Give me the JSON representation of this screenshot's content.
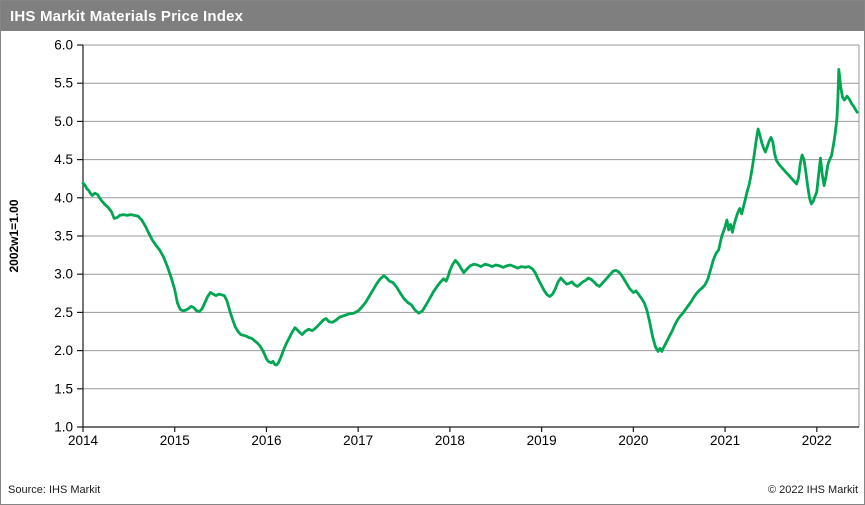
{
  "header": {
    "title": "IHS Markit Materials Price Index",
    "bg_color": "#7f7f7f",
    "text_color": "#ffffff"
  },
  "footer": {
    "source": "Source: IHS Markit",
    "copyright": "© 2022  IHS Markit"
  },
  "chart_data": {
    "type": "line",
    "title": "IHS Markit Materials Price Index",
    "xlabel": "",
    "ylabel": "2002w1=1.00",
    "xlim": [
      2014,
      2022.46
    ],
    "ylim": [
      1.0,
      6.0
    ],
    "grid": "horizontal",
    "legend": "none",
    "gridline_color": "#999999",
    "axis_color": "#1a1a1a",
    "tick_label_color": "#000000",
    "x_ticks": [
      2014,
      2015,
      2016,
      2017,
      2018,
      2019,
      2020,
      2021,
      2022
    ],
    "x_tick_labels": [
      "2014",
      "2015",
      "2016",
      "2017",
      "2018",
      "2019",
      "2020",
      "2021",
      "2022"
    ],
    "y_ticks": [
      1.0,
      1.5,
      2.0,
      2.5,
      3.0,
      3.5,
      4.0,
      4.5,
      5.0,
      5.5,
      6.0
    ],
    "y_tick_labels": [
      "1.0",
      "1.5",
      "2.0",
      "2.5",
      "3.0",
      "3.5",
      "4.0",
      "4.5",
      "5.0",
      "5.5",
      "6.0"
    ],
    "series": [
      {
        "name": "IHS Markit Materials Price Index",
        "color": "#00A651",
        "points": [
          [
            2014.0,
            4.19
          ],
          [
            2014.02,
            4.17
          ],
          [
            2014.04,
            4.12
          ],
          [
            2014.06,
            4.1
          ],
          [
            2014.08,
            4.06
          ],
          [
            2014.1,
            4.03
          ],
          [
            2014.13,
            4.06
          ],
          [
            2014.16,
            4.04
          ],
          [
            2014.18,
            4.0
          ],
          [
            2014.21,
            3.95
          ],
          [
            2014.24,
            3.91
          ],
          [
            2014.27,
            3.88
          ],
          [
            2014.31,
            3.82
          ],
          [
            2014.34,
            3.73
          ],
          [
            2014.37,
            3.74
          ],
          [
            2014.4,
            3.77
          ],
          [
            2014.44,
            3.78
          ],
          [
            2014.48,
            3.77
          ],
          [
            2014.52,
            3.78
          ],
          [
            2014.56,
            3.77
          ],
          [
            2014.6,
            3.76
          ],
          [
            2014.64,
            3.71
          ],
          [
            2014.68,
            3.63
          ],
          [
            2014.72,
            3.53
          ],
          [
            2014.76,
            3.44
          ],
          [
            2014.8,
            3.37
          ],
          [
            2014.84,
            3.31
          ],
          [
            2014.88,
            3.22
          ],
          [
            2014.92,
            3.1
          ],
          [
            2014.96,
            2.96
          ],
          [
            2015.0,
            2.8
          ],
          [
            2015.03,
            2.62
          ],
          [
            2015.06,
            2.54
          ],
          [
            2015.09,
            2.52
          ],
          [
            2015.12,
            2.53
          ],
          [
            2015.15,
            2.55
          ],
          [
            2015.18,
            2.58
          ],
          [
            2015.21,
            2.56
          ],
          [
            2015.24,
            2.52
          ],
          [
            2015.27,
            2.51
          ],
          [
            2015.3,
            2.55
          ],
          [
            2015.33,
            2.63
          ],
          [
            2015.36,
            2.71
          ],
          [
            2015.39,
            2.76
          ],
          [
            2015.42,
            2.74
          ],
          [
            2015.45,
            2.72
          ],
          [
            2015.48,
            2.74
          ],
          [
            2015.51,
            2.73
          ],
          [
            2015.54,
            2.72
          ],
          [
            2015.57,
            2.65
          ],
          [
            2015.6,
            2.52
          ],
          [
            2015.63,
            2.41
          ],
          [
            2015.66,
            2.31
          ],
          [
            2015.69,
            2.25
          ],
          [
            2015.72,
            2.21
          ],
          [
            2015.75,
            2.2
          ],
          [
            2015.78,
            2.19
          ],
          [
            2015.81,
            2.17
          ],
          [
            2015.84,
            2.16
          ],
          [
            2015.87,
            2.13
          ],
          [
            2015.9,
            2.1
          ],
          [
            2015.93,
            2.06
          ],
          [
            2015.96,
            2.0
          ],
          [
            2015.98,
            1.95
          ],
          [
            2016.0,
            1.89
          ],
          [
            2016.02,
            1.86
          ],
          [
            2016.05,
            1.84
          ],
          [
            2016.07,
            1.86
          ],
          [
            2016.09,
            1.82
          ],
          [
            2016.11,
            1.81
          ],
          [
            2016.13,
            1.84
          ],
          [
            2016.16,
            1.92
          ],
          [
            2016.19,
            2.02
          ],
          [
            2016.22,
            2.1
          ],
          [
            2016.25,
            2.17
          ],
          [
            2016.28,
            2.24
          ],
          [
            2016.31,
            2.3
          ],
          [
            2016.33,
            2.28
          ],
          [
            2016.36,
            2.24
          ],
          [
            2016.39,
            2.21
          ],
          [
            2016.42,
            2.25
          ],
          [
            2016.46,
            2.28
          ],
          [
            2016.5,
            2.26
          ],
          [
            2016.54,
            2.3
          ],
          [
            2016.58,
            2.35
          ],
          [
            2016.62,
            2.4
          ],
          [
            2016.65,
            2.42
          ],
          [
            2016.68,
            2.38
          ],
          [
            2016.72,
            2.37
          ],
          [
            2016.76,
            2.4
          ],
          [
            2016.8,
            2.44
          ],
          [
            2016.85,
            2.46
          ],
          [
            2016.9,
            2.48
          ],
          [
            2016.95,
            2.49
          ],
          [
            2017.0,
            2.52
          ],
          [
            2017.04,
            2.57
          ],
          [
            2017.08,
            2.63
          ],
          [
            2017.12,
            2.71
          ],
          [
            2017.16,
            2.79
          ],
          [
            2017.2,
            2.87
          ],
          [
            2017.24,
            2.94
          ],
          [
            2017.28,
            2.98
          ],
          [
            2017.31,
            2.95
          ],
          [
            2017.34,
            2.91
          ],
          [
            2017.38,
            2.89
          ],
          [
            2017.42,
            2.83
          ],
          [
            2017.46,
            2.75
          ],
          [
            2017.5,
            2.68
          ],
          [
            2017.54,
            2.63
          ],
          [
            2017.58,
            2.6
          ],
          [
            2017.62,
            2.53
          ],
          [
            2017.66,
            2.49
          ],
          [
            2017.7,
            2.52
          ],
          [
            2017.74,
            2.6
          ],
          [
            2017.78,
            2.68
          ],
          [
            2017.82,
            2.77
          ],
          [
            2017.86,
            2.84
          ],
          [
            2017.9,
            2.9
          ],
          [
            2017.93,
            2.94
          ],
          [
            2017.96,
            2.91
          ],
          [
            2017.98,
            2.97
          ],
          [
            2018.0,
            3.05
          ],
          [
            2018.03,
            3.13
          ],
          [
            2018.06,
            3.18
          ],
          [
            2018.09,
            3.14
          ],
          [
            2018.12,
            3.08
          ],
          [
            2018.15,
            3.02
          ],
          [
            2018.18,
            3.06
          ],
          [
            2018.22,
            3.11
          ],
          [
            2018.26,
            3.13
          ],
          [
            2018.3,
            3.12
          ],
          [
            2018.34,
            3.1
          ],
          [
            2018.38,
            3.13
          ],
          [
            2018.42,
            3.12
          ],
          [
            2018.46,
            3.1
          ],
          [
            2018.5,
            3.12
          ],
          [
            2018.54,
            3.11
          ],
          [
            2018.58,
            3.09
          ],
          [
            2018.62,
            3.11
          ],
          [
            2018.66,
            3.12
          ],
          [
            2018.7,
            3.1
          ],
          [
            2018.74,
            3.08
          ],
          [
            2018.78,
            3.1
          ],
          [
            2018.82,
            3.09
          ],
          [
            2018.86,
            3.1
          ],
          [
            2018.9,
            3.07
          ],
          [
            2018.93,
            3.02
          ],
          [
            2018.96,
            2.94
          ],
          [
            2019.0,
            2.85
          ],
          [
            2019.03,
            2.78
          ],
          [
            2019.06,
            2.73
          ],
          [
            2019.09,
            2.71
          ],
          [
            2019.12,
            2.74
          ],
          [
            2019.15,
            2.81
          ],
          [
            2019.18,
            2.9
          ],
          [
            2019.21,
            2.95
          ],
          [
            2019.24,
            2.91
          ],
          [
            2019.27,
            2.87
          ],
          [
            2019.3,
            2.88
          ],
          [
            2019.33,
            2.9
          ],
          [
            2019.36,
            2.86
          ],
          [
            2019.39,
            2.84
          ],
          [
            2019.42,
            2.87
          ],
          [
            2019.45,
            2.9
          ],
          [
            2019.48,
            2.92
          ],
          [
            2019.51,
            2.95
          ],
          [
            2019.54,
            2.93
          ],
          [
            2019.57,
            2.9
          ],
          [
            2019.6,
            2.86
          ],
          [
            2019.63,
            2.84
          ],
          [
            2019.66,
            2.88
          ],
          [
            2019.69,
            2.92
          ],
          [
            2019.72,
            2.96
          ],
          [
            2019.75,
            3.0
          ],
          [
            2019.78,
            3.04
          ],
          [
            2019.81,
            3.05
          ],
          [
            2019.84,
            3.03
          ],
          [
            2019.87,
            2.99
          ],
          [
            2019.9,
            2.93
          ],
          [
            2019.93,
            2.87
          ],
          [
            2019.96,
            2.81
          ],
          [
            2020.0,
            2.76
          ],
          [
            2020.03,
            2.78
          ],
          [
            2020.06,
            2.73
          ],
          [
            2020.09,
            2.68
          ],
          [
            2020.12,
            2.62
          ],
          [
            2020.15,
            2.52
          ],
          [
            2020.18,
            2.36
          ],
          [
            2020.21,
            2.18
          ],
          [
            2020.24,
            2.05
          ],
          [
            2020.27,
            1.99
          ],
          [
            2020.29,
            2.03
          ],
          [
            2020.31,
            1.99
          ],
          [
            2020.33,
            2.04
          ],
          [
            2020.36,
            2.11
          ],
          [
            2020.39,
            2.18
          ],
          [
            2020.42,
            2.25
          ],
          [
            2020.45,
            2.33
          ],
          [
            2020.48,
            2.4
          ],
          [
            2020.51,
            2.45
          ],
          [
            2020.54,
            2.49
          ],
          [
            2020.57,
            2.54
          ],
          [
            2020.6,
            2.59
          ],
          [
            2020.63,
            2.64
          ],
          [
            2020.66,
            2.7
          ],
          [
            2020.69,
            2.75
          ],
          [
            2020.72,
            2.79
          ],
          [
            2020.75,
            2.82
          ],
          [
            2020.78,
            2.86
          ],
          [
            2020.81,
            2.93
          ],
          [
            2020.84,
            3.05
          ],
          [
            2020.87,
            3.18
          ],
          [
            2020.9,
            3.27
          ],
          [
            2020.93,
            3.32
          ],
          [
            2020.96,
            3.48
          ],
          [
            2021.0,
            3.62
          ],
          [
            2021.02,
            3.71
          ],
          [
            2021.04,
            3.58
          ],
          [
            2021.06,
            3.65
          ],
          [
            2021.08,
            3.55
          ],
          [
            2021.1,
            3.66
          ],
          [
            2021.12,
            3.74
          ],
          [
            2021.14,
            3.81
          ],
          [
            2021.16,
            3.86
          ],
          [
            2021.18,
            3.79
          ],
          [
            2021.2,
            3.88
          ],
          [
            2021.22,
            3.98
          ],
          [
            2021.24,
            4.08
          ],
          [
            2021.26,
            4.16
          ],
          [
            2021.28,
            4.28
          ],
          [
            2021.3,
            4.42
          ],
          [
            2021.32,
            4.58
          ],
          [
            2021.34,
            4.76
          ],
          [
            2021.36,
            4.9
          ],
          [
            2021.38,
            4.82
          ],
          [
            2021.4,
            4.72
          ],
          [
            2021.42,
            4.65
          ],
          [
            2021.44,
            4.6
          ],
          [
            2021.46,
            4.67
          ],
          [
            2021.48,
            4.74
          ],
          [
            2021.5,
            4.79
          ],
          [
            2021.52,
            4.73
          ],
          [
            2021.54,
            4.58
          ],
          [
            2021.56,
            4.49
          ],
          [
            2021.58,
            4.45
          ],
          [
            2021.6,
            4.42
          ],
          [
            2021.63,
            4.38
          ],
          [
            2021.66,
            4.34
          ],
          [
            2021.69,
            4.3
          ],
          [
            2021.72,
            4.26
          ],
          [
            2021.75,
            4.22
          ],
          [
            2021.78,
            4.18
          ],
          [
            2021.8,
            4.26
          ],
          [
            2021.82,
            4.45
          ],
          [
            2021.84,
            4.56
          ],
          [
            2021.86,
            4.5
          ],
          [
            2021.88,
            4.34
          ],
          [
            2021.9,
            4.16
          ],
          [
            2021.92,
            4.0
          ],
          [
            2021.94,
            3.92
          ],
          [
            2021.96,
            3.95
          ],
          [
            2021.98,
            4.02
          ],
          [
            2022.0,
            4.08
          ],
          [
            2022.02,
            4.3
          ],
          [
            2022.04,
            4.52
          ],
          [
            2022.06,
            4.3
          ],
          [
            2022.08,
            4.16
          ],
          [
            2022.1,
            4.28
          ],
          [
            2022.12,
            4.43
          ],
          [
            2022.14,
            4.5
          ],
          [
            2022.16,
            4.55
          ],
          [
            2022.18,
            4.68
          ],
          [
            2022.2,
            4.84
          ],
          [
            2022.22,
            5.05
          ],
          [
            2022.23,
            5.3
          ],
          [
            2022.24,
            5.68
          ],
          [
            2022.26,
            5.45
          ],
          [
            2022.28,
            5.32
          ],
          [
            2022.3,
            5.28
          ],
          [
            2022.33,
            5.33
          ],
          [
            2022.36,
            5.28
          ],
          [
            2022.38,
            5.23
          ],
          [
            2022.4,
            5.2
          ],
          [
            2022.42,
            5.16
          ],
          [
            2022.44,
            5.12
          ]
        ]
      }
    ]
  }
}
